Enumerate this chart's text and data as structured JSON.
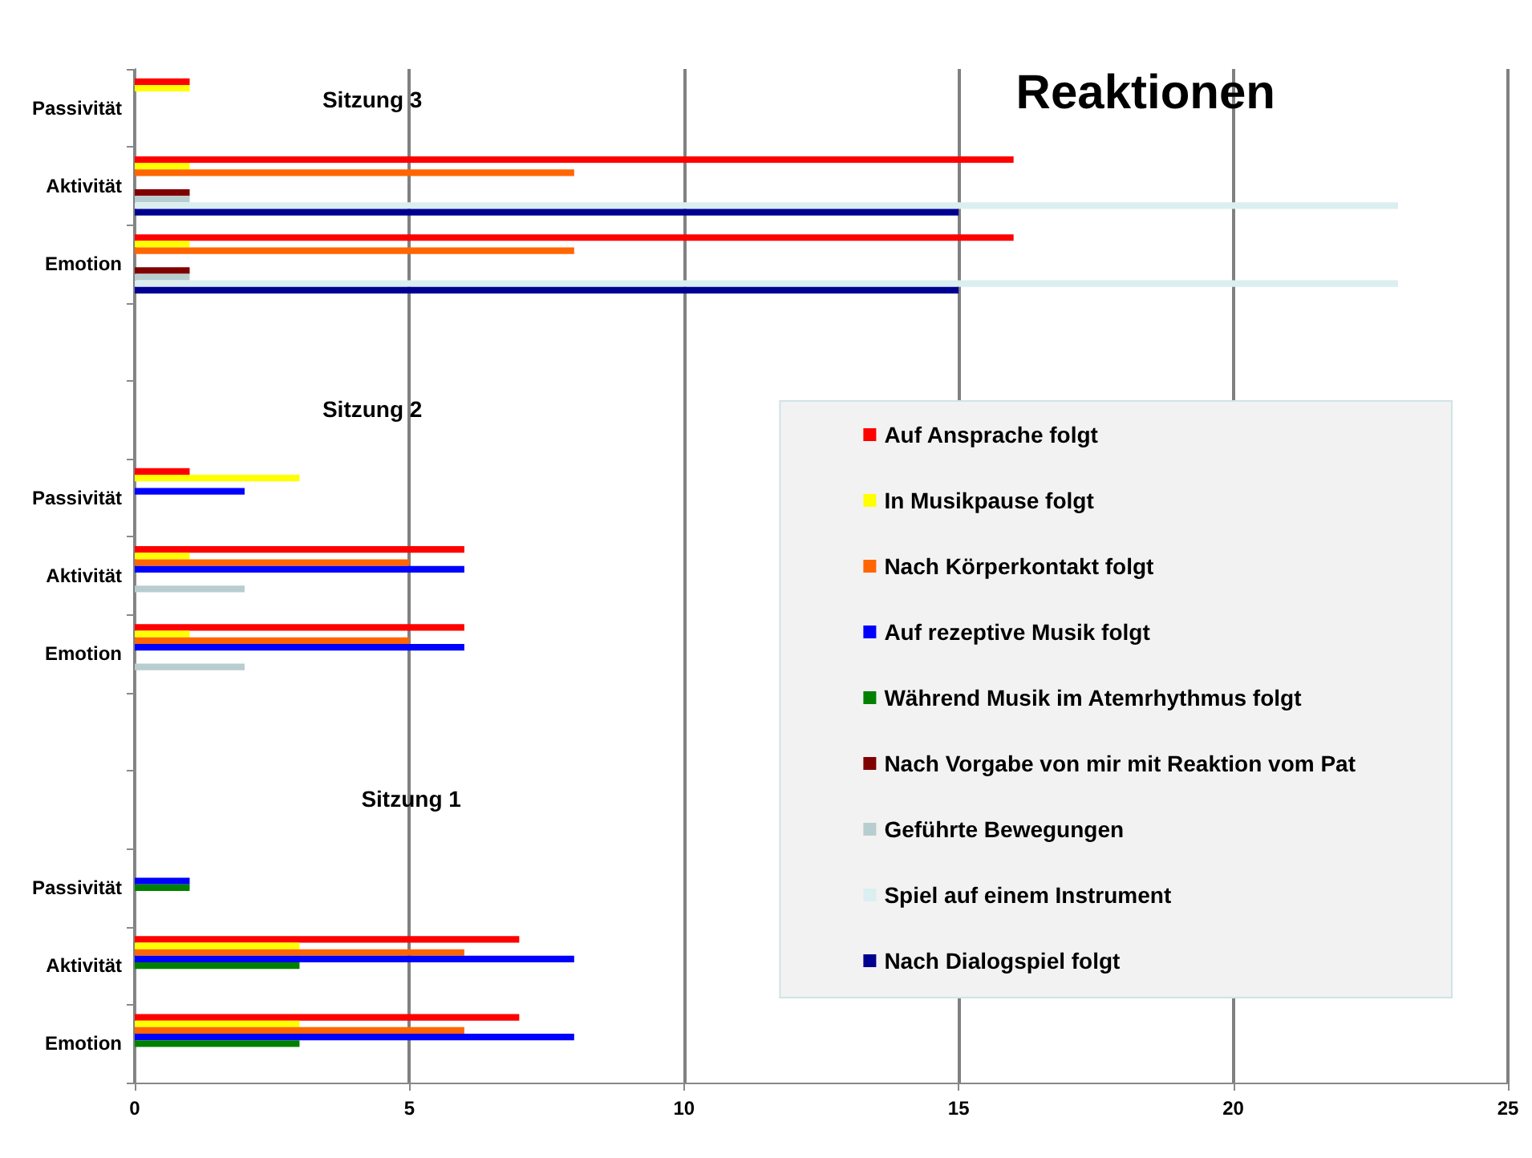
{
  "chart_data": {
    "type": "bar",
    "orientation": "horizontal",
    "title": "Reaktionen",
    "categories": [
      "Passivität",
      "Aktivität",
      "Emotion",
      null,
      null,
      "Passivität",
      "Aktivität",
      "Emotion",
      null,
      null,
      "Passivität",
      "Aktivität",
      "Emotion"
    ],
    "series": [
      {
        "name": "Auf Ansprache folgt",
        "color": "#ff0000",
        "values": [
          1,
          16,
          16,
          null,
          null,
          1,
          6,
          6,
          null,
          null,
          null,
          7,
          7
        ]
      },
      {
        "name": "In Musikpause folgt",
        "color": "#ffff00",
        "values": [
          1,
          1,
          1,
          null,
          null,
          3,
          1,
          1,
          null,
          null,
          null,
          3,
          3
        ]
      },
      {
        "name": "Nach Körperkontakt folgt",
        "color": "#ff6600",
        "values": [
          null,
          8,
          8,
          null,
          null,
          null,
          5,
          5,
          null,
          null,
          null,
          6,
          6
        ]
      },
      {
        "name": "Auf rezeptive Musik folgt",
        "color": "#0000ff",
        "values": [
          null,
          null,
          null,
          null,
          null,
          2,
          6,
          6,
          null,
          null,
          1,
          8,
          8
        ]
      },
      {
        "name": "Während Musik im Atemrhythmus folgt",
        "color": "#008000",
        "values": [
          null,
          null,
          null,
          null,
          null,
          null,
          null,
          null,
          null,
          null,
          1,
          3,
          3
        ]
      },
      {
        "name": "Nach Vorgabe von mir mit Reaktion vom Pat",
        "color": "#800000",
        "values": [
          null,
          1,
          1,
          null,
          null,
          null,
          null,
          null,
          null,
          null,
          null,
          null,
          null
        ]
      },
      {
        "name": "Geführte Bewegungen",
        "color": "#b8cdd0",
        "values": [
          null,
          1,
          1,
          null,
          null,
          null,
          2,
          2,
          null,
          null,
          null,
          null,
          null
        ]
      },
      {
        "name": "Spiel auf einem Instrument",
        "color": "#dbeef0",
        "values": [
          null,
          23,
          23,
          null,
          null,
          null,
          null,
          null,
          null,
          null,
          null,
          null,
          null
        ]
      },
      {
        "name": "Nach Dialogspiel folgt",
        "color": "#000090",
        "values": [
          null,
          15,
          15,
          null,
          null,
          null,
          null,
          null,
          null,
          null,
          null,
          null,
          null
        ]
      }
    ],
    "xlim": [
      0,
      25
    ],
    "xticks": [
      0,
      5,
      10,
      15,
      20,
      25
    ],
    "annotations": [
      "Sitzung 3",
      "Sitzung 2",
      "Sitzung 1"
    ],
    "grid": "x",
    "legend": "bottom right"
  }
}
